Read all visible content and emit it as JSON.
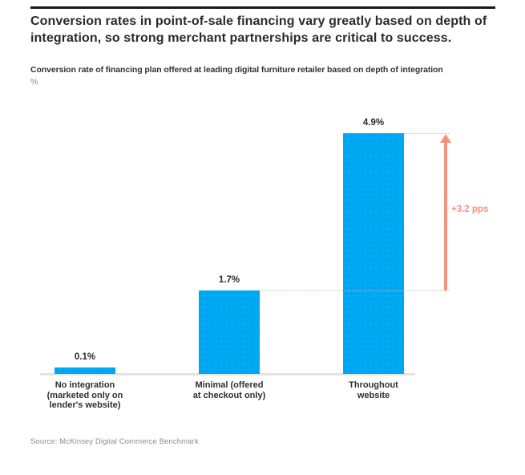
{
  "exhibit": {
    "title": "Conversion rates in point-of-sale financing vary greatly based on depth of integration, so strong merchant partnerships are critical to success.",
    "title_lines": [
      "Conversion rates in point-of-sale financing vary greatly based on depth of",
      "integration, so strong merchant partnerships are critical to success."
    ],
    "subtitle": "Conversion rate of financing plan offered at leading digital furniture retailer based on depth of integration",
    "unit_label": "%",
    "source": "Source: McKinsey Digital Commerce Benchmark",
    "top_rule_color": "#171717"
  },
  "chart_data": {
    "type": "bar",
    "title": "Conversion rate of financing plan offered at leading digital furniture retailer based on depth of integration",
    "ylabel": "%",
    "xlabel": "",
    "categories": [
      "No integration (marketed only on lender's website)",
      "Minimal (offered at checkout only)",
      "Throughout website"
    ],
    "category_label_lines": [
      [
        "No integration",
        "(marketed only on",
        "lender's website)"
      ],
      [
        "Minimal (offered",
        "at checkout only)"
      ],
      [
        "Throughout",
        "website"
      ]
    ],
    "values": [
      0.1,
      1.7,
      4.9
    ],
    "value_labels": [
      "0.1%",
      "1.7%",
      "4.9%"
    ],
    "ylim": [
      0,
      5.2
    ],
    "grid": "off",
    "legend": "none",
    "bar_color": "#00a9f4",
    "axis_color": "#e3e3e3",
    "leader_line_style": "dotted",
    "annotation": {
      "label": "+3.2 pps",
      "from_value": 1.7,
      "to_value": 4.9,
      "color": "#f7917f",
      "shape": "vertical-arrow-up"
    }
  }
}
